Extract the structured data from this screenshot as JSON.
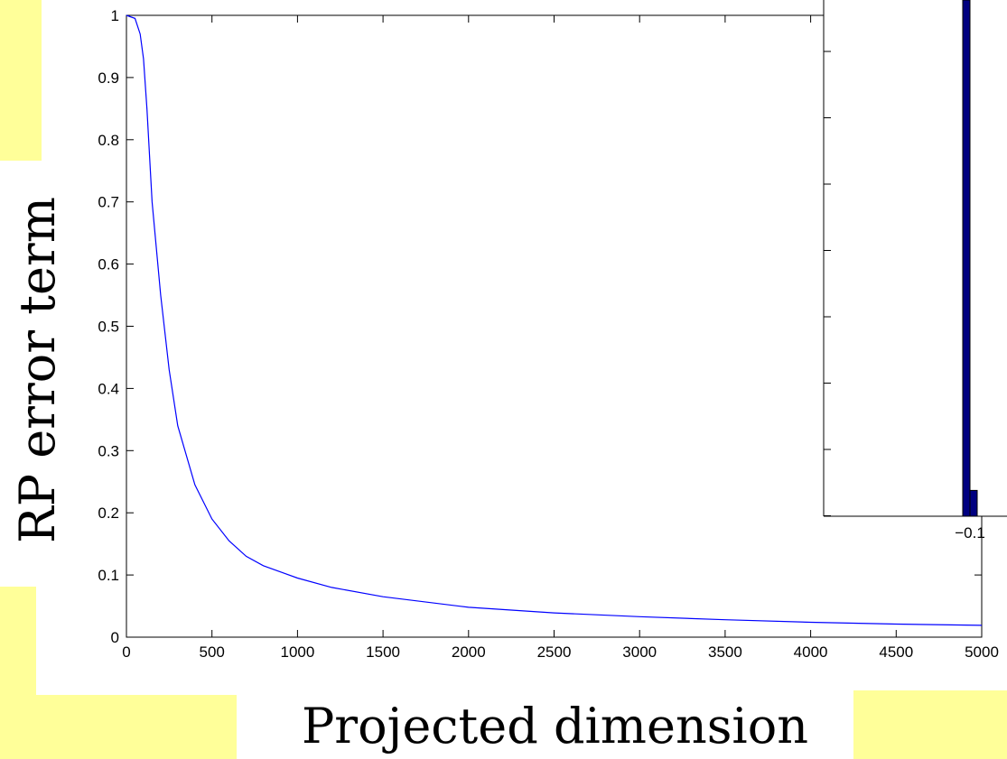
{
  "chart_data": [
    {
      "type": "line",
      "title": "",
      "xlabel": "Projected dimension",
      "ylabel": "RP error term",
      "xlim": [
        0,
        5000
      ],
      "ylim": [
        0,
        1
      ],
      "x_ticks": [
        "0",
        "500",
        "1000",
        "1500",
        "2000",
        "2500",
        "3000",
        "3500",
        "4000",
        "4500",
        "5000"
      ],
      "y_ticks": [
        "0",
        "0.1",
        "0.2",
        "0.3",
        "0.4",
        "0.5",
        "0.6",
        "0.7",
        "0.8",
        "0.9",
        "1"
      ],
      "grid": false,
      "series": [
        {
          "color": "#0000ff",
          "x": [
            0,
            50,
            80,
            100,
            120,
            150,
            200,
            250,
            300,
            400,
            500,
            600,
            700,
            800,
            1000,
            1200,
            1500,
            2000,
            2500,
            3000,
            3500,
            4000,
            4500,
            5000
          ],
          "y": [
            1.0,
            0.995,
            0.97,
            0.93,
            0.85,
            0.7,
            0.55,
            0.43,
            0.34,
            0.245,
            0.19,
            0.155,
            0.13,
            0.115,
            0.095,
            0.08,
            0.065,
            0.048,
            0.039,
            0.033,
            0.028,
            0.024,
            0.021,
            0.019
          ]
        }
      ]
    },
    {
      "type": "bar",
      "title": "",
      "x_ticks": [
        "−0.1"
      ],
      "note": "partially visible inset histogram",
      "bars": [
        {
          "x": -0.1,
          "value": 1.0
        },
        {
          "x": -0.095,
          "value": 0.05
        }
      ],
      "bar_color": "#000080"
    }
  ]
}
